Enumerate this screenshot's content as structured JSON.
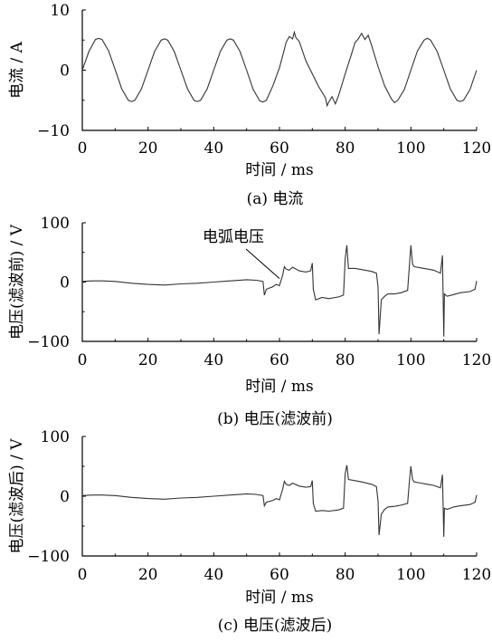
{
  "chart_data": [
    {
      "type": "line",
      "caption": "(a)  电流",
      "xlabel": "时间 / ms",
      "ylabel": "电流 / A",
      "xlim": [
        0,
        120
      ],
      "ylim": [
        -10,
        10
      ],
      "xticks": [
        "0",
        "20",
        "40",
        "60",
        "80",
        "100",
        "120"
      ],
      "yticks": [
        "10",
        "0",
        "−10"
      ],
      "series": [
        {
          "x": [
            0,
            2,
            4,
            5,
            6,
            8,
            10,
            12,
            14,
            15,
            16,
            18,
            20,
            22,
            24,
            25,
            26,
            28,
            30,
            32,
            34,
            35,
            36,
            38,
            40,
            42,
            44,
            45,
            46,
            48,
            50,
            52,
            54,
            55,
            56,
            58,
            60,
            61,
            62,
            63,
            64,
            64.5,
            65,
            66,
            68,
            70,
            72,
            74,
            74.5,
            75,
            76,
            77,
            78,
            80,
            82,
            83,
            84,
            85,
            86,
            87,
            88,
            90,
            92,
            94,
            95,
            96,
            98,
            100,
            102,
            104,
            105,
            106,
            108,
            110,
            112,
            114,
            115,
            116,
            118,
            120
          ],
          "y": [
            0,
            3.1,
            5.1,
            5.3,
            5.1,
            3.2,
            0.1,
            -3.1,
            -5.0,
            -5.2,
            -5.0,
            -3.1,
            0,
            3.1,
            5.0,
            5.2,
            5.0,
            3.1,
            0,
            -3.1,
            -5.0,
            -5.2,
            -5.0,
            -3.1,
            0,
            3.1,
            5.0,
            5.2,
            5.0,
            3.1,
            0,
            -3.2,
            -5.1,
            -5.3,
            -5.0,
            -2.6,
            0.4,
            2.4,
            4.6,
            5.6,
            5.2,
            6.3,
            5.4,
            4.8,
            1.6,
            -0.6,
            -2.8,
            -4.6,
            -5.9,
            -5.3,
            -4.4,
            -5.6,
            -4.2,
            -0.6,
            2.8,
            4.6,
            5.2,
            6.1,
            5.1,
            5.8,
            4.2,
            0.6,
            -2.6,
            -4.7,
            -5.4,
            -5.0,
            -3.2,
            0,
            3.2,
            5.0,
            5.3,
            5.0,
            3.1,
            0,
            -3.1,
            -5.0,
            -5.2,
            -5.0,
            -3.2,
            0
          ]
        }
      ]
    },
    {
      "type": "line",
      "caption": "(b)  电压(滤波前)",
      "xlabel": "时间 / ms",
      "ylabel": "电压(滤波前) / V",
      "annotation": "电弧电压",
      "xlim": [
        0,
        120
      ],
      "ylim": [
        -100,
        100
      ],
      "xticks": [
        "0",
        "20",
        "40",
        "60",
        "80",
        "100",
        "120"
      ],
      "yticks": [
        "100",
        "0",
        "−100"
      ],
      "series": [
        {
          "x": [
            0,
            3,
            6,
            10,
            15,
            20,
            25,
            30,
            35,
            40,
            45,
            50,
            53,
            55,
            55.4,
            56,
            58,
            59,
            60,
            61,
            61.5,
            62,
            63,
            64,
            66,
            68,
            69.5,
            70,
            70.3,
            71,
            73,
            75,
            78,
            79.5,
            80,
            80.5,
            81,
            83,
            85,
            88,
            89.5,
            90,
            90.3,
            91,
            92,
            93,
            95,
            97,
            99,
            99.5,
            100,
            100.5,
            101,
            103,
            105,
            107,
            109,
            109.6,
            110,
            110.2,
            111,
            113,
            115,
            118,
            119.5,
            120
          ],
          "y": [
            1,
            2,
            2,
            1,
            -2,
            -4,
            -5,
            -3,
            -2,
            0,
            2,
            4,
            3,
            1,
            -22,
            -12,
            -8,
            -4,
            -6,
            12,
            26,
            22,
            20,
            25,
            19,
            17,
            19,
            32,
            -12,
            -30,
            -26,
            -28,
            -25,
            -22,
            40,
            62,
            23,
            23,
            21,
            18,
            15,
            -8,
            -88,
            -30,
            -24,
            -20,
            -20,
            -18,
            -14,
            24,
            62,
            30,
            26,
            24,
            22,
            20,
            15,
            45,
            -92,
            -20,
            -24,
            -21,
            -18,
            -16,
            -12,
            2
          ]
        }
      ]
    },
    {
      "type": "line",
      "caption": "(c)  电压(滤波后)",
      "xlabel": "时间 / ms",
      "ylabel": "电压(滤波后) / V",
      "xlim": [
        0,
        120
      ],
      "ylim": [
        -100,
        100
      ],
      "xticks": [
        "0",
        "20",
        "40",
        "60",
        "80",
        "100",
        "120"
      ],
      "yticks": [
        "100",
        "0",
        "−100"
      ],
      "series": [
        {
          "x": [
            0,
            3,
            6,
            10,
            15,
            20,
            25,
            30,
            35,
            40,
            45,
            50,
            53,
            55,
            55.4,
            56,
            58,
            59,
            60,
            61,
            61.5,
            62,
            63,
            64,
            66,
            68,
            69.5,
            70,
            70.3,
            71,
            73,
            75,
            78,
            79.5,
            80,
            80.5,
            81,
            83,
            85,
            88,
            89.5,
            90,
            90.3,
            91,
            92,
            93,
            95,
            97,
            99,
            99.5,
            100,
            100.5,
            101,
            103,
            105,
            107,
            109,
            109.6,
            110,
            110.2,
            111,
            113,
            115,
            118,
            119.5,
            120
          ],
          "y": [
            1,
            2,
            2,
            1,
            -2,
            -4,
            -5,
            -3,
            -2,
            0,
            2,
            4,
            3,
            1,
            -16,
            -10,
            -7,
            -4,
            -6,
            12,
            25,
            20,
            18,
            22,
            17,
            15,
            16,
            26,
            -12,
            -25,
            -24,
            -25,
            -23,
            -20,
            38,
            52,
            28,
            26,
            24,
            20,
            16,
            -8,
            -65,
            -30,
            -22,
            -18,
            -17,
            -15,
            -12,
            22,
            50,
            28,
            24,
            22,
            20,
            18,
            14,
            36,
            -68,
            -20,
            -22,
            -18,
            -16,
            -14,
            -10,
            2
          ]
        }
      ]
    }
  ]
}
